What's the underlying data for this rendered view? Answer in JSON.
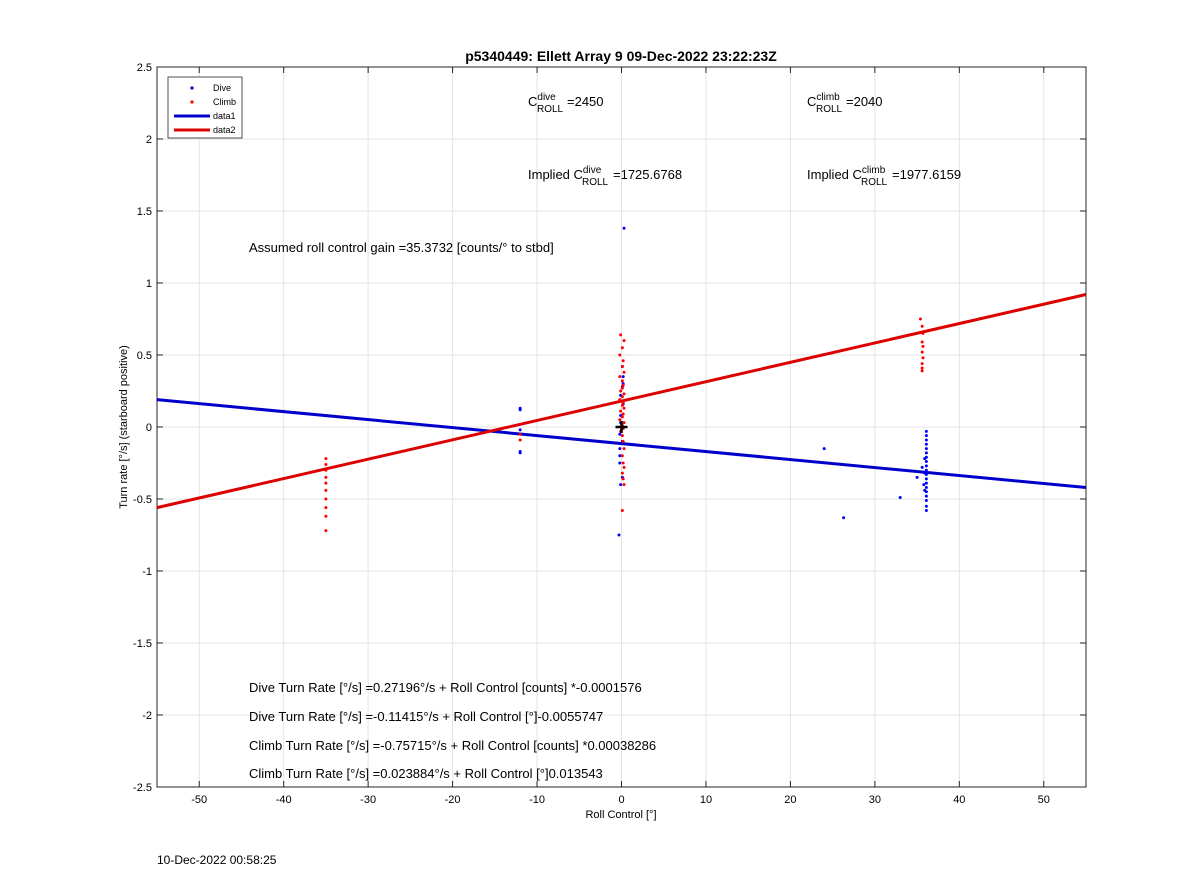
{
  "chart_data": {
    "type": "scatter",
    "title": "p5340449: Ellett Array 9 09-Dec-2022 23:22:23Z",
    "xlabel": "Roll Control [°]",
    "ylabel": "Turn rate [°/s] (starboard positive)",
    "xlim": [
      -55,
      55
    ],
    "ylim": [
      -2.5,
      2.5
    ],
    "xticks": [
      -50,
      -40,
      -30,
      -20,
      -10,
      0,
      10,
      20,
      30,
      40,
      50
    ],
    "yticks": [
      -2.5,
      -2,
      -1.5,
      -1,
      -0.5,
      0,
      0.5,
      1,
      1.5,
      2,
      2.5
    ],
    "grid": true,
    "legend_position": "top-left",
    "series": [
      {
        "name": "Dive",
        "kind": "points",
        "color": "#0000ff",
        "points": [
          [
            -12,
            0.13
          ],
          [
            -12,
            0.12
          ],
          [
            -12,
            -0.02
          ],
          [
            -12,
            -0.17
          ],
          [
            -12,
            -0.18
          ],
          [
            -0.2,
            -0.05
          ],
          [
            -0.2,
            -0.15
          ],
          [
            -0.2,
            -0.25
          ],
          [
            -0.3,
            -0.75
          ],
          [
            0.3,
            1.38
          ],
          [
            0.1,
            0.42
          ],
          [
            0.2,
            0.35
          ],
          [
            0.1,
            0.28
          ],
          [
            -0.1,
            0.22
          ],
          [
            0.2,
            0.16
          ],
          [
            -0.1,
            0.08
          ],
          [
            0.1,
            -0.1
          ],
          [
            -0.2,
            -0.2
          ],
          [
            0.1,
            -0.35
          ],
          [
            -0.1,
            -0.4
          ],
          [
            0.2,
            0.3
          ],
          [
            -0.1,
            0.03
          ],
          [
            24,
            -0.15
          ],
          [
            26.3,
            -0.63
          ],
          [
            33,
            -0.49
          ],
          [
            35,
            -0.35
          ],
          [
            35.6,
            -0.28
          ],
          [
            35.8,
            -0.4
          ],
          [
            36.1,
            -0.03
          ],
          [
            36.1,
            -0.06
          ],
          [
            36.1,
            -0.09
          ],
          [
            36.1,
            -0.12
          ],
          [
            36.1,
            -0.15
          ],
          [
            36.1,
            -0.18
          ],
          [
            36.1,
            -0.21
          ],
          [
            36.1,
            -0.24
          ],
          [
            36.1,
            -0.27
          ],
          [
            36.1,
            -0.3
          ],
          [
            36.1,
            -0.33
          ],
          [
            36.1,
            -0.36
          ],
          [
            36.1,
            -0.39
          ],
          [
            36.1,
            -0.42
          ],
          [
            36.1,
            -0.45
          ],
          [
            36.1,
            -0.48
          ],
          [
            36.1,
            -0.51
          ],
          [
            36.1,
            -0.55
          ],
          [
            36.1,
            -0.58
          ],
          [
            35.9,
            -0.22
          ],
          [
            35.9,
            -0.32
          ],
          [
            35.9,
            -0.44
          ]
        ]
      },
      {
        "name": "Climb",
        "kind": "points",
        "color": "#ff0000",
        "points": [
          [
            -35,
            -0.22
          ],
          [
            -35,
            -0.26
          ],
          [
            -35,
            -0.3
          ],
          [
            -35,
            -0.35
          ],
          [
            -35,
            -0.39
          ],
          [
            -35,
            -0.44
          ],
          [
            -35,
            -0.5
          ],
          [
            -35,
            -0.56
          ],
          [
            -35,
            -0.62
          ],
          [
            -35,
            -0.72
          ],
          [
            -12,
            -0.05
          ],
          [
            -12,
            -0.09
          ],
          [
            -0.1,
            0.64
          ],
          [
            0.3,
            0.6
          ],
          [
            0.1,
            0.55
          ],
          [
            -0.2,
            0.5
          ],
          [
            0.2,
            0.46
          ],
          [
            0.1,
            0.42
          ],
          [
            0.3,
            0.38
          ],
          [
            -0.2,
            0.35
          ],
          [
            0.1,
            0.32
          ],
          [
            0.2,
            0.29
          ],
          [
            0.1,
            0.27
          ],
          [
            -0.1,
            0.25
          ],
          [
            0.3,
            0.23
          ],
          [
            0.1,
            0.21
          ],
          [
            -0.2,
            0.19
          ],
          [
            0.2,
            0.17
          ],
          [
            0.1,
            0.15
          ],
          [
            0.3,
            0.13
          ],
          [
            -0.1,
            0.11
          ],
          [
            0.2,
            0.09
          ],
          [
            0.1,
            0.07
          ],
          [
            -0.2,
            0.05
          ],
          [
            0.3,
            0.03
          ],
          [
            0.1,
            0.01
          ],
          [
            0.2,
            -0.01
          ],
          [
            -0.1,
            -0.03
          ],
          [
            0.1,
            -0.06
          ],
          [
            0.2,
            -0.1
          ],
          [
            0.3,
            -0.15
          ],
          [
            0.1,
            -0.2
          ],
          [
            0.2,
            -0.25
          ],
          [
            0.3,
            -0.28
          ],
          [
            0.1,
            -0.32
          ],
          [
            0.2,
            -0.36
          ],
          [
            0.3,
            -0.4
          ],
          [
            0.1,
            -0.58
          ],
          [
            35.4,
            0.75
          ],
          [
            35.6,
            0.7
          ],
          [
            35.7,
            0.65
          ],
          [
            35.6,
            0.59
          ],
          [
            35.7,
            0.56
          ],
          [
            35.6,
            0.52
          ],
          [
            35.7,
            0.48
          ],
          [
            35.6,
            0.44
          ],
          [
            35.6,
            0.41
          ],
          [
            35.6,
            0.39
          ]
        ]
      },
      {
        "name": "data1",
        "kind": "line",
        "color": "#0000cc",
        "x": [
          -55,
          55
        ],
        "y": [
          0.19,
          -0.42
        ]
      },
      {
        "name": "data2",
        "kind": "line",
        "color": "#dd0000",
        "x": [
          -55,
          55
        ],
        "y": [
          -0.56,
          0.92
        ]
      }
    ],
    "marker": {
      "x": 0,
      "y": 0,
      "symbol": "+"
    },
    "annotations": {
      "c_dive_prefix": "C",
      "c_dive_sup": "dive",
      "c_dive_sub": "ROLL",
      "c_dive_value": "=2450",
      "c_climb_prefix": "C",
      "c_climb_sup": "climb",
      "c_climb_sub": "ROLL",
      "c_climb_value": "=2040",
      "implied_dive_prefix": "Implied C",
      "implied_dive_sup": "dive",
      "implied_dive_sub": "ROLL",
      "implied_dive_value": "=1725.6768",
      "implied_climb_prefix": "Implied C",
      "implied_climb_sup": "climb",
      "implied_climb_sub": "ROLL",
      "implied_climb_value": "=1977.6159",
      "gain": "Assumed roll control gain =35.3732 [counts/° to stbd]",
      "eq1": "Dive Turn Rate [°/s] =0.27196°/s + Roll Control [counts] *-0.0001576",
      "eq2": "Dive Turn Rate [°/s] =-0.11415°/s + Roll Control [°]-0.0055747",
      "eq3": "Climb Turn Rate [°/s] =-0.75715°/s + Roll Control [counts] *0.00038286",
      "eq4": "Climb Turn Rate [°/s] =0.023884°/s + Roll Control [°]0.013543"
    }
  },
  "footer": {
    "timestamp": "10-Dec-2022 00:58:25"
  }
}
